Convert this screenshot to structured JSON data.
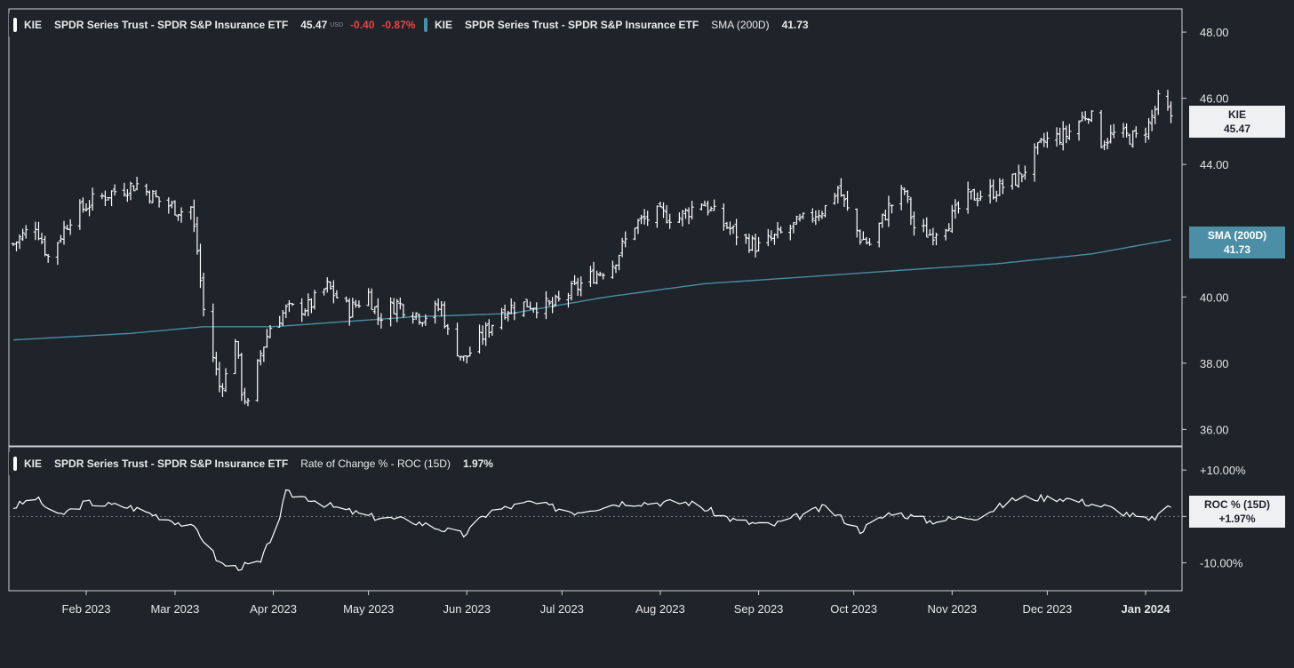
{
  "legend_price": {
    "ticker": "KIE",
    "name": "SPDR Series Trust - SPDR S&P Insurance ETF",
    "price": "45.47",
    "currency": "USD",
    "change": "-0.40",
    "change_pct": "-0.87%"
  },
  "legend_sma": {
    "ticker": "KIE",
    "name": "SPDR Series Trust - SPDR S&P Insurance ETF",
    "indicator": "SMA (200D)",
    "value": "41.73"
  },
  "legend_roc": {
    "ticker": "KIE",
    "name": "SPDR Series Trust - SPDR S&P Insurance ETF",
    "indicator": "Rate of Change % - ROC (15D)",
    "value": "1.97%"
  },
  "tags": {
    "price_label": "KIE",
    "price_value": "45.47",
    "sma_label": "SMA (200D)",
    "sma_value": "41.73",
    "roc_label": "ROC % (15D)",
    "roc_value": "+1.97%"
  },
  "colors": {
    "background": "#1f232a",
    "price_bars": "#ffffff",
    "sma_line": "#4b8ea6",
    "roc_line": "#ffffff",
    "negative": "#ef4444",
    "grid_border": "#cfd3d8"
  },
  "chart_data": [
    {
      "type": "ohlc",
      "title": "KIE",
      "x_labels": [
        "Feb 2023",
        "Mar 2023",
        "Apr 2023",
        "May 2023",
        "Jun 2023",
        "Jul 2023",
        "Aug 2023",
        "Sep 2023",
        "Oct 2023",
        "Nov 2023",
        "Dec 2023",
        "Jan 2024"
      ],
      "y_ticks": [
        "48.00",
        "46.00",
        "44.00",
        "40.00",
        "38.00",
        "36.00"
      ],
      "ylim": [
        35.5,
        48.7
      ],
      "price_anchors": [
        [
          "2023-01-09",
          41.6
        ],
        [
          "2023-01-16",
          42.2
        ],
        [
          "2023-01-20",
          41.2
        ],
        [
          "2023-01-27",
          42.4
        ],
        [
          "2023-02-03",
          42.9
        ],
        [
          "2023-02-10",
          43.2
        ],
        [
          "2023-02-17",
          43.4
        ],
        [
          "2023-02-24",
          42.9
        ],
        [
          "2023-03-03",
          42.6
        ],
        [
          "2023-03-06",
          42.7
        ],
        [
          "2023-03-08",
          41.4
        ],
        [
          "2023-03-10",
          39.6
        ],
        [
          "2023-03-13",
          38.2
        ],
        [
          "2023-03-15",
          37.3
        ],
        [
          "2023-03-17",
          37.6
        ],
        [
          "2023-03-20",
          38.8
        ],
        [
          "2023-03-22",
          37.2
        ],
        [
          "2023-03-24",
          36.7
        ],
        [
          "2023-03-28",
          38.3
        ],
        [
          "2023-03-31",
          39.1
        ],
        [
          "2023-04-05",
          39.6
        ],
        [
          "2023-04-12",
          39.7
        ],
        [
          "2023-04-18",
          40.3
        ],
        [
          "2023-04-25",
          39.6
        ],
        [
          "2023-05-01",
          40.1
        ],
        [
          "2023-05-04",
          39.4
        ],
        [
          "2023-05-10",
          39.8
        ],
        [
          "2023-05-18",
          39.4
        ],
        [
          "2023-05-24",
          39.7
        ],
        [
          "2023-05-26",
          38.9
        ],
        [
          "2023-05-31",
          38.1
        ],
        [
          "2023-06-05",
          38.7
        ],
        [
          "2023-06-12",
          39.6
        ],
        [
          "2023-06-20",
          39.8
        ],
        [
          "2023-06-28",
          39.7
        ],
        [
          "2023-07-03",
          40.1
        ],
        [
          "2023-07-10",
          40.6
        ],
        [
          "2023-07-17",
          41.0
        ],
        [
          "2023-07-24",
          42.2
        ],
        [
          "2023-07-31",
          42.5
        ],
        [
          "2023-08-07",
          42.4
        ],
        [
          "2023-08-14",
          42.9
        ],
        [
          "2023-08-21",
          42.2
        ],
        [
          "2023-08-28",
          41.7
        ],
        [
          "2023-09-01",
          41.5
        ],
        [
          "2023-09-08",
          41.9
        ],
        [
          "2023-09-15",
          42.3
        ],
        [
          "2023-09-22",
          42.7
        ],
        [
          "2023-09-26",
          43.3
        ],
        [
          "2023-09-29",
          42.6
        ],
        [
          "2023-10-03",
          41.8
        ],
        [
          "2023-10-06",
          41.6
        ],
        [
          "2023-10-12",
          42.7
        ],
        [
          "2023-10-17",
          43.2
        ],
        [
          "2023-10-20",
          42.1
        ],
        [
          "2023-10-25",
          41.9
        ],
        [
          "2023-10-31",
          42.3
        ],
        [
          "2023-11-06",
          43.0
        ],
        [
          "2023-11-14",
          43.2
        ],
        [
          "2023-11-22",
          43.6
        ],
        [
          "2023-11-30",
          44.7
        ],
        [
          "2023-12-07",
          44.9
        ],
        [
          "2023-12-14",
          45.6
        ],
        [
          "2023-12-18",
          44.7
        ],
        [
          "2023-12-22",
          44.9
        ],
        [
          "2023-12-29",
          44.8
        ],
        [
          "2024-01-02",
          45.2
        ],
        [
          "2024-01-05",
          45.9
        ],
        [
          "2024-01-09",
          45.47
        ]
      ],
      "sma_anchors": [
        [
          "2023-01-09",
          38.7
        ],
        [
          "2023-02-15",
          38.9
        ],
        [
          "2023-03-10",
          39.1
        ],
        [
          "2023-04-01",
          39.1
        ],
        [
          "2023-05-15",
          39.4
        ],
        [
          "2023-06-15",
          39.5
        ],
        [
          "2023-07-15",
          40.0
        ],
        [
          "2023-08-15",
          40.4
        ],
        [
          "2023-09-15",
          40.6
        ],
        [
          "2023-10-15",
          40.8
        ],
        [
          "2023-11-15",
          41.0
        ],
        [
          "2023-12-15",
          41.3
        ],
        [
          "2024-01-09",
          41.73
        ]
      ]
    },
    {
      "type": "line",
      "title": "Rate of Change % - ROC (15D)",
      "y_ticks": [
        "+10.00%",
        "+0",
        "-10.00%"
      ],
      "ylim": [
        -16,
        15
      ],
      "roc_anchors": [
        [
          "2023-01-09",
          2
        ],
        [
          "2023-01-16",
          4
        ],
        [
          "2023-01-23",
          0
        ],
        [
          "2023-02-01",
          3
        ],
        [
          "2023-02-15",
          2
        ],
        [
          "2023-03-01",
          -1
        ],
        [
          "2023-03-08",
          -3
        ],
        [
          "2023-03-15",
          -10
        ],
        [
          "2023-03-20",
          -11
        ],
        [
          "2023-03-28",
          -10
        ],
        [
          "2023-04-03",
          0
        ],
        [
          "2023-04-05",
          5
        ],
        [
          "2023-04-12",
          4
        ],
        [
          "2023-04-20",
          2
        ],
        [
          "2023-05-01",
          0
        ],
        [
          "2023-05-15",
          -1
        ],
        [
          "2023-05-31",
          -4
        ],
        [
          "2023-06-08",
          1
        ],
        [
          "2023-06-21",
          3
        ],
        [
          "2023-07-05",
          1
        ],
        [
          "2023-07-20",
          3
        ],
        [
          "2023-08-10",
          3
        ],
        [
          "2023-08-25",
          -1
        ],
        [
          "2023-09-05",
          -2
        ],
        [
          "2023-09-22",
          2
        ],
        [
          "2023-10-03",
          -3
        ],
        [
          "2023-10-13",
          1
        ],
        [
          "2023-10-25",
          -1
        ],
        [
          "2023-11-09",
          0
        ],
        [
          "2023-11-22",
          4
        ],
        [
          "2023-12-06",
          4
        ],
        [
          "2023-12-20",
          2
        ],
        [
          "2024-01-02",
          -1
        ],
        [
          "2024-01-09",
          1.97
        ]
      ]
    }
  ]
}
